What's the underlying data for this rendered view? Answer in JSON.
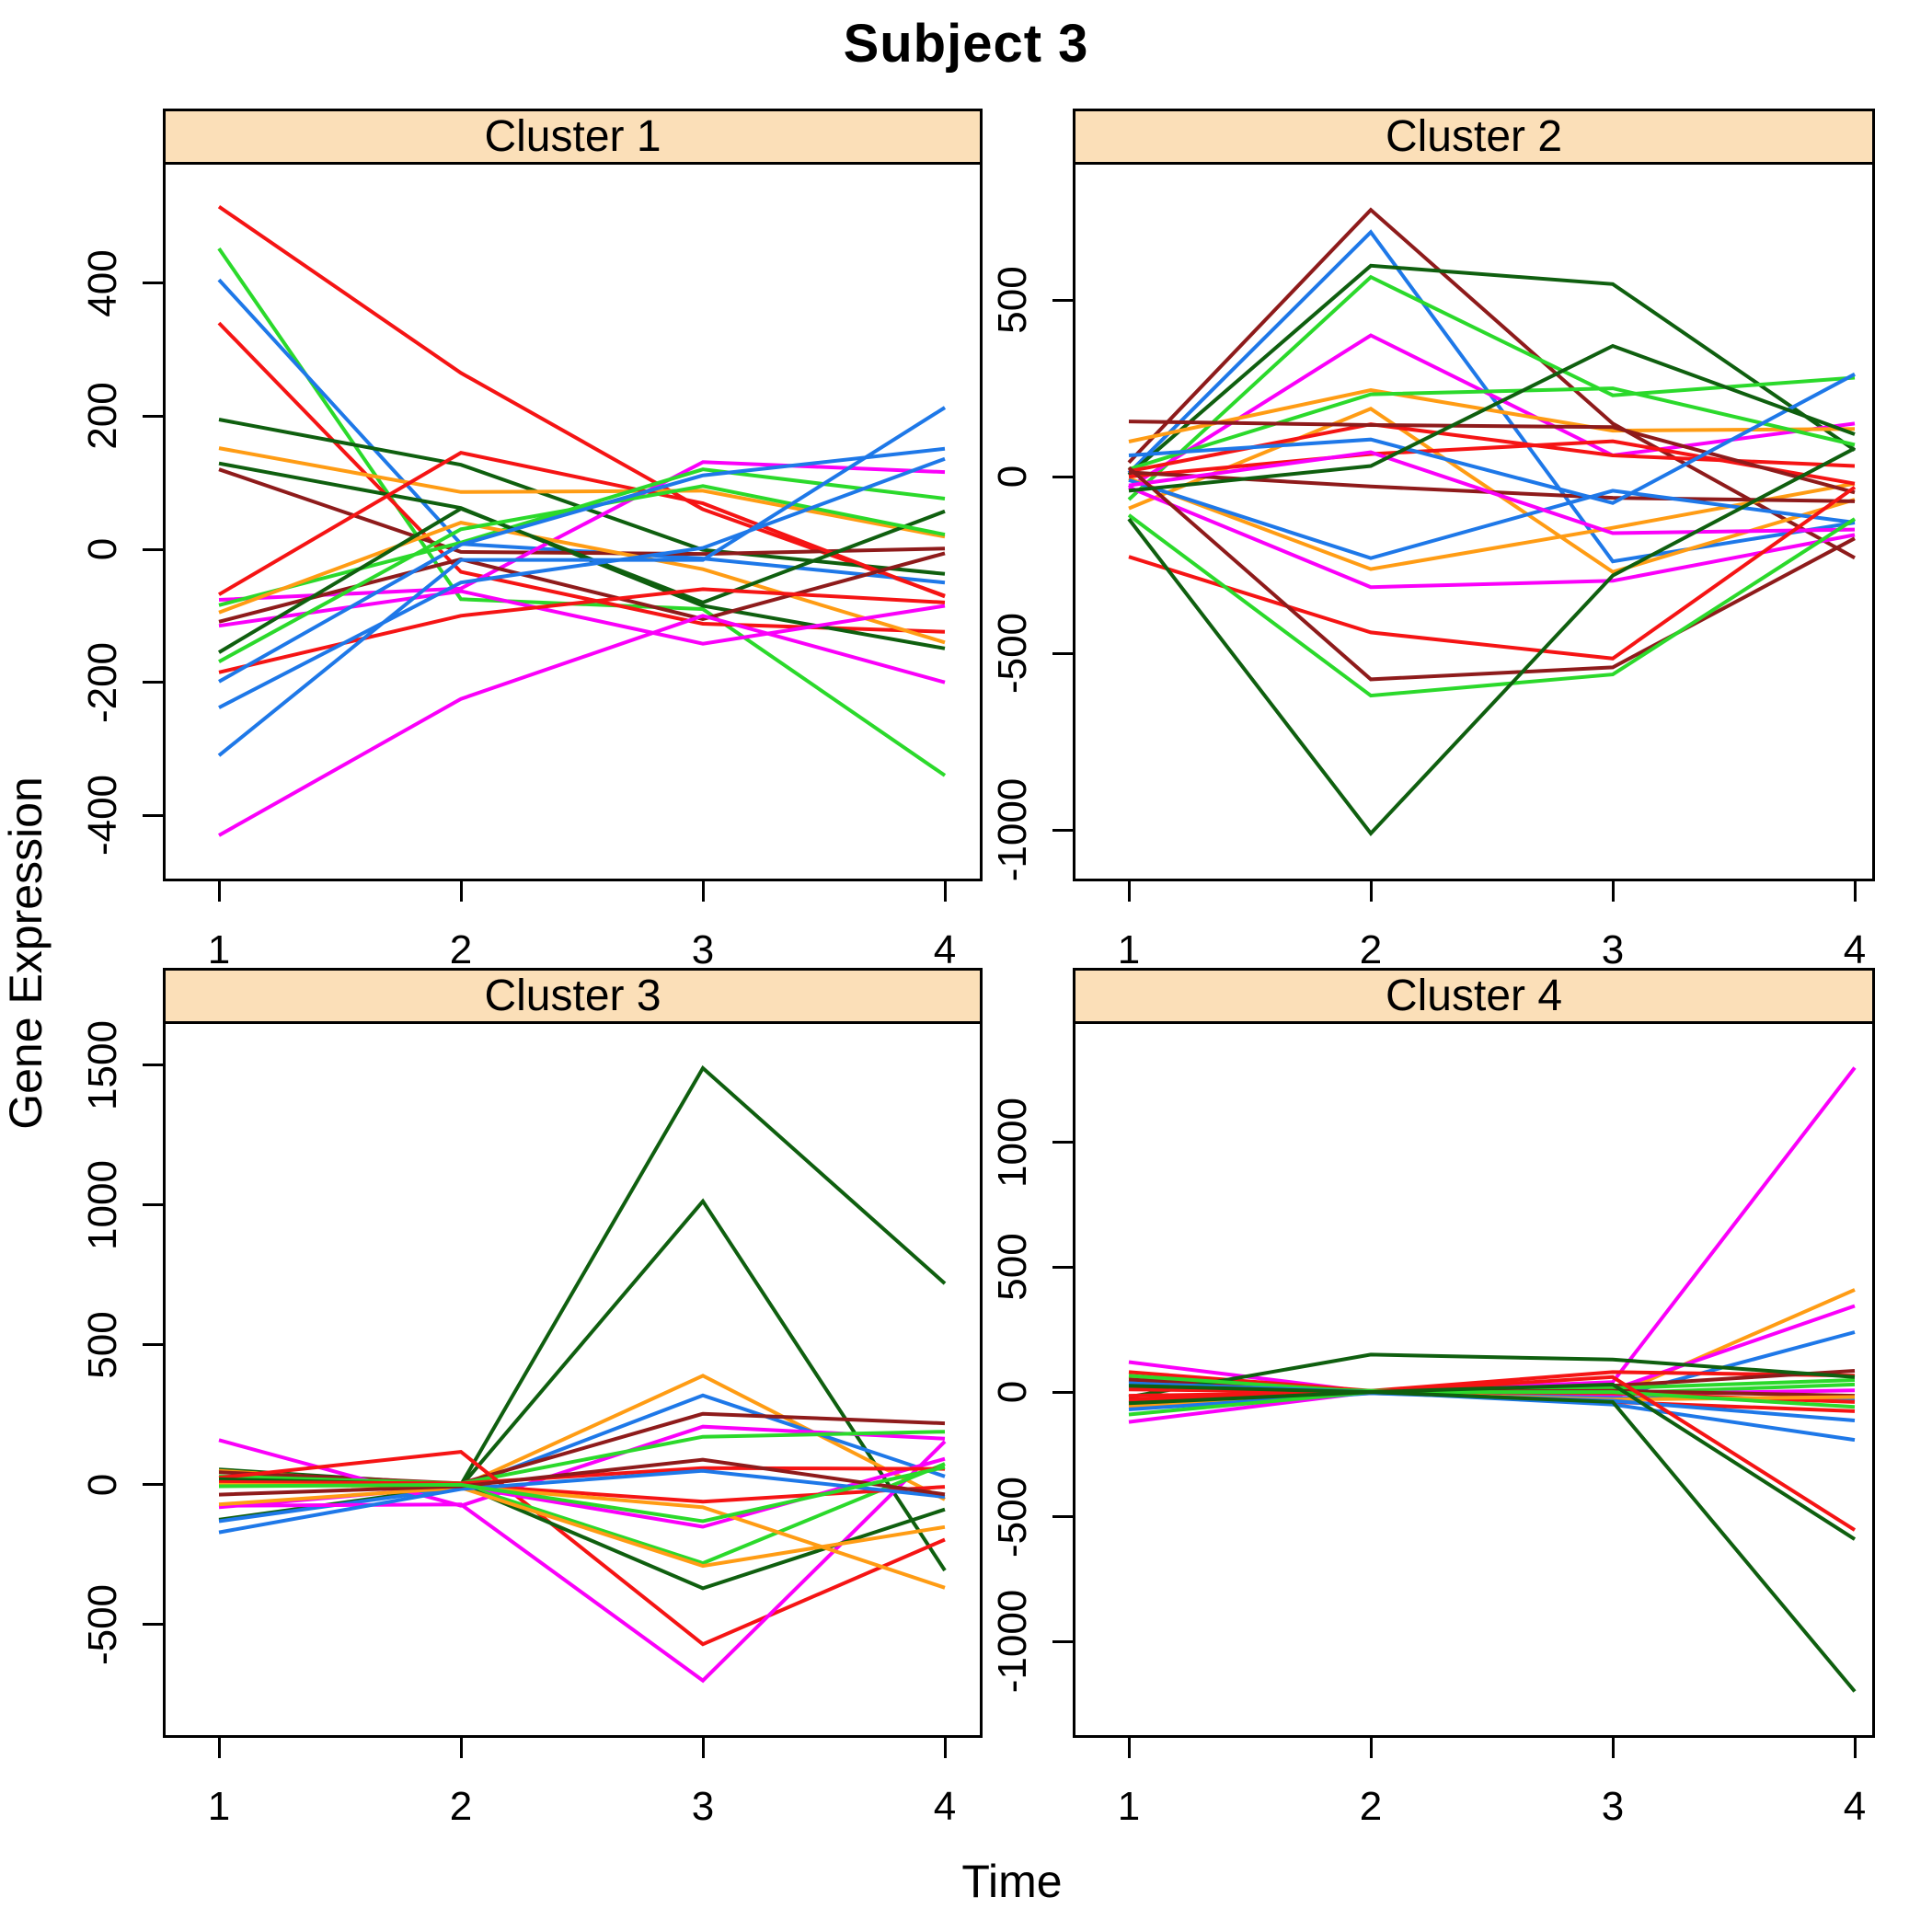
{
  "title": "Subject 3",
  "chart_data": {
    "type": "line",
    "title": "Subject 3",
    "xlabel": "Time",
    "ylabel": "Gene Expression",
    "x": [
      1,
      2,
      3,
      4
    ],
    "x_tick_labels": [
      "1",
      "2",
      "3",
      "4"
    ],
    "legend": "none",
    "grid": false,
    "strip_color": "#FBDFB8",
    "palette": {
      "red": "#F51414",
      "blue": "#1E78E8",
      "green": "#2BD92B",
      "darkgreen": "#0F5F0F",
      "orange": "#FF9C14",
      "magenta": "#FA00FA",
      "maroon": "#8E1B1B"
    },
    "panels": [
      {
        "title": "Cluster 1",
        "ylim": [
          -495,
          578
        ],
        "y_ticks": [
          400,
          200,
          0,
          -200,
          -400
        ],
        "series": [
          {
            "c": "red",
            "v": [
              515,
              265,
              60,
              -70
            ]
          },
          {
            "c": "green",
            "v": [
              452,
              -75,
              -90,
              -340
            ]
          },
          {
            "c": "blue",
            "v": [
              405,
              8,
              -14,
              -50
            ]
          },
          {
            "c": "red",
            "v": [
              340,
              -34,
              -112,
              -124
            ]
          },
          {
            "c": "darkgreen",
            "v": [
              195,
              127,
              -1,
              -37
            ]
          },
          {
            "c": "orange",
            "v": [
              152,
              86,
              88,
              19
            ]
          },
          {
            "c": "darkgreen",
            "v": [
              129,
              62,
              -85,
              -149
            ]
          },
          {
            "c": "maroon",
            "v": [
              120,
              -4,
              -7,
              1
            ]
          },
          {
            "c": "red",
            "v": [
              -68,
              145,
              69,
              -71
            ]
          },
          {
            "c": "magenta",
            "v": [
              -76,
              -59,
              131,
              116
            ]
          },
          {
            "c": "green",
            "v": [
              -84,
              10,
              120,
              76
            ]
          },
          {
            "c": "orange",
            "v": [
              -95,
              40,
              -30,
              -140
            ]
          },
          {
            "c": "maroon",
            "v": [
              -109,
              -15,
              -105,
              -6
            ]
          },
          {
            "c": "magenta",
            "v": [
              -115,
              -63,
              -142,
              -85
            ]
          },
          {
            "c": "darkgreen",
            "v": [
              -155,
              61,
              -80,
              57
            ]
          },
          {
            "c": "green",
            "v": [
              -169,
              30,
              95,
              22
            ]
          },
          {
            "c": "red",
            "v": [
              -185,
              -100,
              -60,
              -80
            ]
          },
          {
            "c": "blue",
            "v": [
              -199,
              7,
              111,
              151
            ]
          },
          {
            "c": "blue",
            "v": [
              -238,
              -50,
              2,
              136
            ]
          },
          {
            "c": "blue",
            "v": [
              -310,
              -16,
              -16,
              213
            ]
          },
          {
            "c": "magenta",
            "v": [
              -430,
              -225,
              -100,
              -200
            ]
          }
        ]
      },
      {
        "title": "Cluster 2",
        "ylim": [
          -1138,
          883
        ],
        "y_ticks": [
          500,
          0,
          -500,
          -1000
        ],
        "series": [
          {
            "c": "maroon",
            "v": [
              40,
              755,
              150,
              -230
            ]
          },
          {
            "c": "blue",
            "v": [
              10,
              692,
              -240,
              -130
            ]
          },
          {
            "c": "darkgreen",
            "v": [
              5,
              597,
              545,
              75
            ]
          },
          {
            "c": "green",
            "v": [
              -65,
              565,
              230,
              280
            ]
          },
          {
            "c": "magenta",
            "v": [
              -31,
              400,
              60,
              150
            ]
          },
          {
            "c": "orange",
            "v": [
              99,
              245,
              130,
              135
            ]
          },
          {
            "c": "green",
            "v": [
              21,
              233,
              250,
              90
            ]
          },
          {
            "c": "orange",
            "v": [
              -90,
              192,
              -270,
              -65
            ]
          },
          {
            "c": "orange",
            "v": [
              -5,
              -262,
              -145,
              -20
            ]
          },
          {
            "c": "red",
            "v": [
              15,
              148,
              60,
              30
            ]
          },
          {
            "c": "red",
            "v": [
              0,
              64,
              100,
              -20
            ]
          },
          {
            "c": "maroon",
            "v": [
              156,
              146,
              140,
              -45
            ]
          },
          {
            "c": "maroon",
            "v": [
              12,
              -28,
              -60,
              -70
            ]
          },
          {
            "c": "blue",
            "v": [
              60,
              105,
              -75,
              290
            ]
          },
          {
            "c": "blue",
            "v": [
              -10,
              -231,
              -40,
              -130
            ]
          },
          {
            "c": "magenta",
            "v": [
              -25,
              69,
              -160,
              -150
            ]
          },
          {
            "c": "magenta",
            "v": [
              -30,
              -313,
              -295,
              -165
            ]
          },
          {
            "c": "red",
            "v": [
              -227,
              -441,
              -515,
              -30
            ]
          },
          {
            "c": "maroon",
            "v": [
              25,
              -574,
              -540,
              -175
            ]
          },
          {
            "c": "green",
            "v": [
              -109,
              -620,
              -560,
              -120
            ]
          },
          {
            "c": "darkgreen",
            "v": [
              -120,
              -1010,
              -280,
              80
            ]
          },
          {
            "c": "darkgreen",
            "v": [
              -40,
              30,
              370,
              120
            ]
          }
        ]
      },
      {
        "title": "Cluster 3",
        "ylim": [
          -895,
          1648
        ],
        "y_ticks": [
          1500,
          1000,
          500,
          0,
          -500
        ],
        "series": [
          {
            "c": "darkgreen",
            "v": [
              55,
              0,
              1490,
              720
            ]
          },
          {
            "c": "darkgreen",
            "v": [
              -125,
              -5,
              1014,
              -306
            ]
          },
          {
            "c": "orange",
            "v": [
              50,
              -5,
              390,
              -52
            ]
          },
          {
            "c": "blue",
            "v": [
              -130,
              -10,
              320,
              30
            ]
          },
          {
            "c": "maroon",
            "v": [
              45,
              5,
              254,
              220
            ]
          },
          {
            "c": "magenta",
            "v": [
              160,
              -75,
              208,
              165
            ]
          },
          {
            "c": "green",
            "v": [
              30,
              5,
              172,
              190
            ]
          },
          {
            "c": "red",
            "v": [
              25,
              118,
              -570,
              -196
            ]
          },
          {
            "c": "magenta",
            "v": [
              -75,
              -70,
              -700,
              155
            ]
          },
          {
            "c": "magenta",
            "v": [
              -80,
              -5,
              -150,
              93
            ]
          },
          {
            "c": "green",
            "v": [
              15,
              0,
              -280,
              75
            ]
          },
          {
            "c": "darkgreen",
            "v": [
              20,
              0,
              -370,
              -88
            ]
          },
          {
            "c": "red",
            "v": [
              10,
              5,
              60,
              57
            ]
          },
          {
            "c": "red",
            "v": [
              0,
              0,
              -60,
              -7
            ]
          },
          {
            "c": "orange",
            "v": [
              -70,
              -10,
              -290,
              -151
            ]
          },
          {
            "c": "orange",
            "v": [
              0,
              -5,
              -80,
              -368
            ]
          },
          {
            "c": "blue",
            "v": [
              -170,
              -15,
              50,
              -43
            ]
          },
          {
            "c": "maroon",
            "v": [
              -35,
              -5,
              90,
              -34
            ]
          },
          {
            "c": "green",
            "v": [
              -5,
              0,
              -130,
              63
            ]
          }
        ]
      },
      {
        "title": "Cluster 4",
        "ylim": [
          -1375,
          1475
        ],
        "y_ticks": [
          1000,
          500,
          0,
          -500,
          -1000
        ],
        "series": [
          {
            "c": "magenta",
            "v": [
              120,
              0,
              40,
              1300
            ]
          },
          {
            "c": "orange",
            "v": [
              60,
              0,
              -15,
              410
            ]
          },
          {
            "c": "magenta",
            "v": [
              -120,
              0,
              10,
              345
            ]
          },
          {
            "c": "blue",
            "v": [
              45,
              -5,
              -20,
              240
            ]
          },
          {
            "c": "red",
            "v": [
              80,
              5,
              80,
              66
            ]
          },
          {
            "c": "maroon",
            "v": [
              50,
              0,
              25,
              85
            ]
          },
          {
            "c": "green",
            "v": [
              30,
              5,
              15,
              48
            ]
          },
          {
            "c": "darkgreen",
            "v": [
              -20,
              150,
              130,
              60
            ]
          },
          {
            "c": "green",
            "v": [
              65,
              0,
              -5,
              30
            ]
          },
          {
            "c": "magenta",
            "v": [
              -60,
              0,
              -10,
              7
            ]
          },
          {
            "c": "maroon",
            "v": [
              -40,
              0,
              5,
              -15
            ]
          },
          {
            "c": "blue",
            "v": [
              20,
              0,
              -25,
              -26
            ]
          },
          {
            "c": "red",
            "v": [
              -30,
              0,
              -5,
              -40
            ]
          },
          {
            "c": "orange",
            "v": [
              -55,
              -5,
              -30,
              -20
            ]
          },
          {
            "c": "red",
            "v": [
              10,
              0,
              -40,
              -77
            ]
          },
          {
            "c": "blue",
            "v": [
              -70,
              -5,
              -35,
              -114
            ]
          },
          {
            "c": "blue",
            "v": [
              35,
              0,
              -50,
              -192
            ]
          },
          {
            "c": "green",
            "v": [
              -90,
              0,
              0,
              -60
            ]
          },
          {
            "c": "red",
            "v": [
              -15,
              0,
              60,
              -553
            ]
          },
          {
            "c": "darkgreen",
            "v": [
              -45,
              0,
              30,
              -590
            ]
          },
          {
            "c": "darkgreen",
            "v": [
              25,
              0,
              -40,
              -1200
            ]
          }
        ]
      }
    ]
  }
}
